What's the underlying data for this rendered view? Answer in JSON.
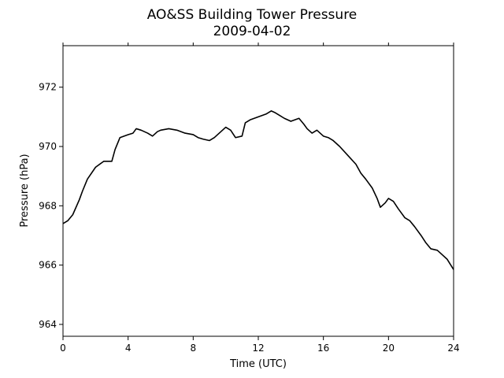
{
  "chart_data": {
    "type": "line",
    "title": "AO&SS Building Tower Pressure",
    "subtitle": "2009-04-02",
    "xlabel": "Time (UTC)",
    "ylabel": "Pressure (hPa)",
    "xlim": [
      0,
      24
    ],
    "ylim": [
      963.6,
      973.4
    ],
    "xticks": [
      0,
      4,
      8,
      12,
      16,
      20,
      24
    ],
    "yticks": [
      964,
      966,
      968,
      970,
      972
    ],
    "grid": false,
    "line_color": "#000000",
    "series": [
      {
        "x": [
          0,
          0.3,
          0.6,
          1.0,
          1.2,
          1.5,
          2.0,
          2.5,
          3.0,
          3.2,
          3.5,
          4.0,
          4.3,
          4.5,
          4.8,
          5.0,
          5.2,
          5.5,
          5.8,
          6.0,
          6.5,
          7.0,
          7.5,
          8.0,
          8.3,
          8.6,
          9.0,
          9.3,
          9.6,
          10.0,
          10.3,
          10.6,
          11.0,
          11.2,
          11.5,
          12.0,
          12.5,
          12.8,
          13.0,
          13.3,
          13.6,
          14.0,
          14.5,
          14.8,
          15.0,
          15.3,
          15.6,
          16.0,
          16.3,
          16.6,
          17.0,
          17.5,
          18.0,
          18.3,
          18.6,
          19.0,
          19.3,
          19.5,
          19.8,
          20.0,
          20.3,
          20.6,
          21.0,
          21.3,
          21.6,
          22.0,
          22.3,
          22.6,
          23.0,
          23.3,
          23.6,
          24.0
        ],
        "y": [
          967.4,
          967.5,
          967.7,
          968.2,
          968.5,
          968.9,
          969.3,
          969.5,
          969.5,
          969.9,
          970.3,
          970.4,
          970.45,
          970.6,
          970.55,
          970.5,
          970.45,
          970.35,
          970.5,
          970.55,
          970.6,
          970.55,
          970.45,
          970.4,
          970.3,
          970.25,
          970.2,
          970.3,
          970.45,
          970.65,
          970.55,
          970.3,
          970.35,
          970.8,
          970.9,
          971.0,
          971.1,
          971.2,
          971.15,
          971.05,
          970.95,
          970.85,
          970.95,
          970.75,
          970.6,
          970.45,
          970.55,
          970.35,
          970.3,
          970.2,
          970.0,
          969.7,
          969.4,
          969.1,
          968.9,
          968.6,
          968.25,
          967.95,
          968.1,
          968.25,
          968.15,
          967.9,
          967.6,
          967.5,
          967.3,
          967.0,
          966.75,
          966.55,
          966.5,
          966.35,
          966.2,
          965.85
        ]
      }
    ]
  }
}
